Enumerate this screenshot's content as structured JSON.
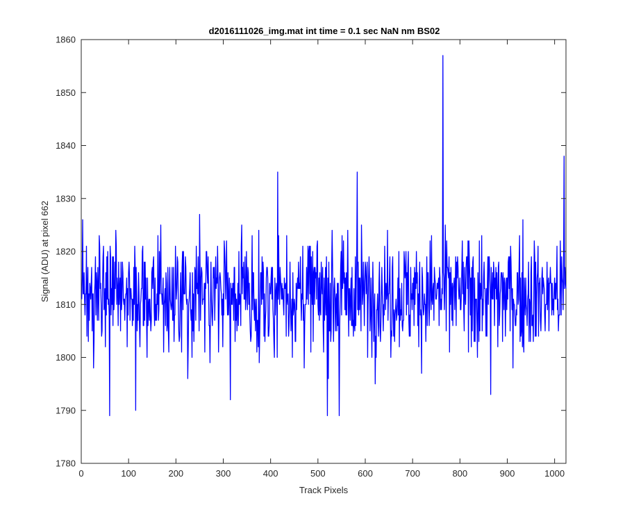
{
  "chart_data": {
    "type": "line",
    "title": "d2016111026_img.mat int time = 0.1 sec  NaN nm BS02",
    "xlabel": "Track Pixels",
    "ylabel": "Signal (ADU) at pixel 662",
    "xlim": [
      0,
      1024
    ],
    "ylim": [
      1780,
      1860
    ],
    "xticks": [
      "0",
      "100",
      "200",
      "300",
      "400",
      "500",
      "600",
      "700",
      "800",
      "900",
      "1000"
    ],
    "yticks": [
      "1780",
      "1790",
      "1800",
      "1810",
      "1820",
      "1830",
      "1840",
      "1850",
      "1860"
    ],
    "grid": false,
    "colors": {
      "line": "#0000ff",
      "axes": "#262626",
      "background": "#ffffff"
    },
    "series": [
      {
        "x_start": 1,
        "x_step": 1,
        "points_count": 1024,
        "mean": 1812,
        "noise_sd": 6.5,
        "values_note_free": true,
        "notable_points": [
          {
            "x": 60,
            "y": 1789
          },
          {
            "x": 115,
            "y": 1790
          },
          {
            "x": 315,
            "y": 1792
          },
          {
            "x": 415,
            "y": 1835
          },
          {
            "x": 520,
            "y": 1789
          },
          {
            "x": 545,
            "y": 1789
          },
          {
            "x": 583,
            "y": 1835
          },
          {
            "x": 764,
            "y": 1857
          },
          {
            "x": 865,
            "y": 1793
          },
          {
            "x": 1020,
            "y": 1838
          }
        ]
      }
    ]
  }
}
